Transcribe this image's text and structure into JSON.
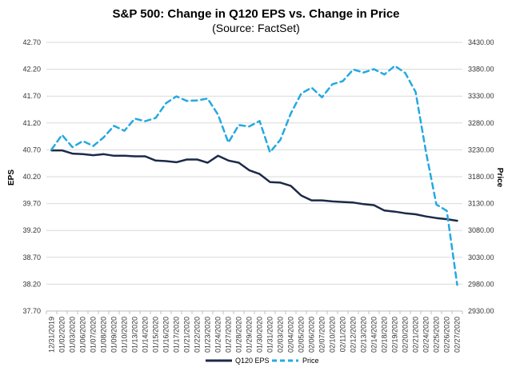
{
  "chart_data": {
    "type": "line",
    "title": "S&P 500: Change in Q120 EPS vs. Change in Price",
    "subtitle": "(Source: FactSet)",
    "ylabel_left": "EPS",
    "ylabel_right": "Price",
    "ylim_left": [
      37.7,
      42.7
    ],
    "ylim_right": [
      2930.0,
      3430.0
    ],
    "y_ticks_left": [
      "42.70",
      "42.20",
      "41.70",
      "41.20",
      "40.70",
      "40.20",
      "39.70",
      "39.20",
      "38.70",
      "38.20",
      "37.70"
    ],
    "y_ticks_right": [
      "3430.00",
      "3380.00",
      "3330.00",
      "3280.00",
      "3230.00",
      "3180.00",
      "3130.00",
      "3080.00",
      "3030.00",
      "2980.00",
      "2930.00"
    ],
    "grid": "horizontal",
    "legend_position": "bottom",
    "x": [
      "12/31/2019",
      "01/02/2020",
      "01/03/2020",
      "01/06/2020",
      "01/07/2020",
      "01/08/2020",
      "01/09/2020",
      "01/10/2020",
      "01/13/2020",
      "01/14/2020",
      "01/15/2020",
      "01/16/2020",
      "01/17/2020",
      "01/21/2020",
      "01/22/2020",
      "01/23/2020",
      "01/24/2020",
      "01/27/2020",
      "01/28/2020",
      "01/29/2020",
      "01/30/2020",
      "01/31/2020",
      "02/03/2020",
      "02/04/2020",
      "02/05/2020",
      "02/06/2020",
      "02/07/2020",
      "02/10/2020",
      "02/11/2020",
      "02/12/2020",
      "02/13/2020",
      "02/14/2020",
      "02/18/2020",
      "02/19/2020",
      "02/20/2020",
      "02/21/2020",
      "02/24/2020",
      "02/25/2020",
      "02/26/2020",
      "02/27/2020"
    ],
    "series": [
      {
        "name": "Q120 EPS",
        "axis": "left",
        "color": "#1c2a48",
        "style": "solid",
        "values": [
          40.69,
          40.69,
          40.63,
          40.62,
          40.6,
          40.62,
          40.59,
          40.59,
          40.58,
          40.58,
          40.5,
          40.49,
          40.47,
          40.52,
          40.52,
          40.46,
          40.59,
          40.5,
          40.46,
          40.32,
          40.25,
          40.1,
          40.09,
          40.03,
          39.85,
          39.76,
          39.76,
          39.74,
          39.73,
          39.72,
          39.69,
          39.67,
          39.57,
          39.55,
          39.52,
          39.5,
          39.46,
          39.43,
          39.41,
          39.38
        ]
      },
      {
        "name": "Price",
        "axis": "right",
        "color": "#24a9e1",
        "style": "dashed",
        "values": [
          3230.8,
          3257.9,
          3234.9,
          3246.3,
          3237.2,
          3253.1,
          3274.7,
          3265.4,
          3288.1,
          3283.2,
          3289.3,
          3316.8,
          3329.6,
          3321.0,
          3321.9,
          3325.5,
          3295.5,
          3243.6,
          3276.2,
          3273.4,
          3283.7,
          3225.5,
          3248.9,
          3297.6,
          3334.7,
          3345.8,
          3327.7,
          3352.1,
          3357.8,
          3379.5,
          3373.9,
          3380.2,
          3370.3,
          3386.2,
          3373.2,
          3337.8,
          3225.9,
          3128.2,
          3116.4,
          2978.8
        ]
      }
    ]
  }
}
